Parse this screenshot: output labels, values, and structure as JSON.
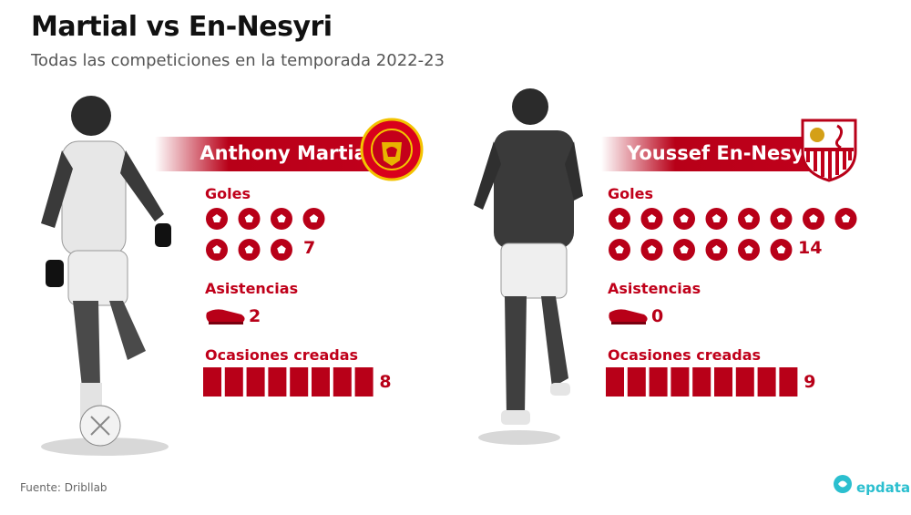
{
  "header": {
    "title": "Martial vs En-Nesyri",
    "subtitle": "Todas las competiciones en la temporada 2022-23"
  },
  "labels": {
    "goals": "Goles",
    "assists": "Asistencias",
    "chances": "Ocasiones creadas"
  },
  "players": [
    {
      "name": "Anthony Martial",
      "club_crest": "manchester-united-crest",
      "crest_text": "MANCHESTER UNITED",
      "goals": "7",
      "assists": "2",
      "chances": "8"
    },
    {
      "name": "Youssef En-Nesyri",
      "club_crest": "sevilla-fc-crest",
      "crest_text": "",
      "goals": "14",
      "assists": "0",
      "chances": "9"
    }
  ],
  "footer": {
    "source": "Fuente: Dribllab",
    "brand": "epdata"
  },
  "colors": {
    "accent": "#c0001a",
    "banner": "#b80018",
    "brand": "#2bbfcf"
  },
  "chart_data": {
    "type": "bar",
    "categories": [
      "Goles",
      "Asistencias",
      "Ocasiones creadas"
    ],
    "series": [
      {
        "name": "Anthony Martial",
        "values": [
          7,
          2,
          8
        ]
      },
      {
        "name": "Youssef En-Nesyri",
        "values": [
          14,
          0,
          9
        ]
      }
    ]
  }
}
